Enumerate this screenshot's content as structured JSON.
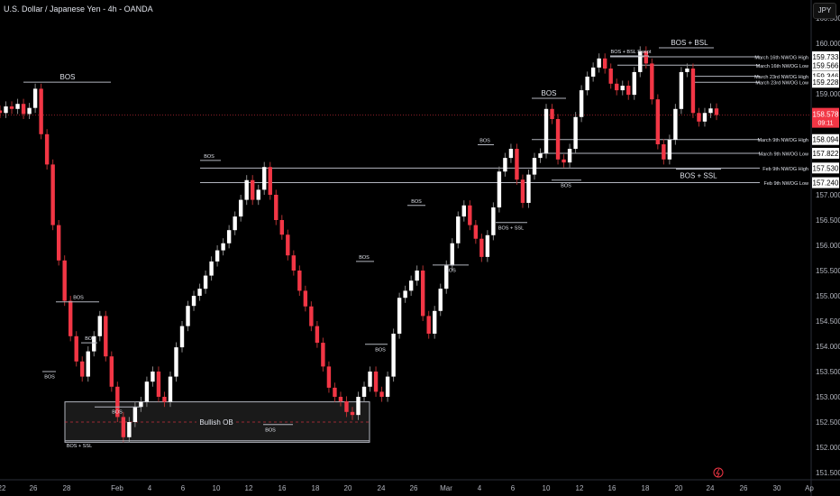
{
  "header": {
    "title": "U.S. Dollar / Japanese Yen - 4h - OANDA",
    "currency_button": "JPY"
  },
  "current_price": {
    "price": 158.578,
    "label": "158.578",
    "countdown": "09:11",
    "color": "#f23645"
  },
  "icons": {
    "alert": "lightning-icon"
  },
  "colors": {
    "background": "#000000",
    "up_candle": "#ffffff",
    "down_candle": "#f23645",
    "level_line": "#b2b5be",
    "axis_text": "#b2b5be"
  },
  "chart_data": {
    "type": "candlestick",
    "title": "U.S. Dollar / Japanese Yen - 4h - OANDA",
    "ylim": [
      151.4,
      160.6
    ],
    "y_ticks": [
      "160.500",
      "160.000",
      "159.000",
      "157.000",
      "156.500",
      "156.000",
      "155.500",
      "155.000",
      "154.500",
      "154.000",
      "153.500",
      "153.000",
      "152.500",
      "152.000",
      "151.500"
    ],
    "x_ticks": [
      "22",
      "26",
      "28",
      "Feb",
      "4",
      "6",
      "10",
      "12",
      "16",
      "18",
      "20",
      "24",
      "26",
      "Mar",
      "4",
      "6",
      "10",
      "12",
      "16",
      "18",
      "20",
      "24",
      "26",
      "30",
      "Ap"
    ],
    "closes": [
      158.62,
      158.75,
      158.7,
      158.8,
      158.6,
      158.72,
      159.1,
      158.2,
      157.6,
      156.4,
      155.7,
      154.9,
      154.2,
      153.7,
      153.4,
      153.9,
      154.2,
      154.6,
      153.8,
      153.2,
      152.6,
      152.2,
      152.5,
      152.8,
      152.9,
      153.3,
      153.5,
      153.0,
      152.9,
      153.4,
      153.98,
      154.4,
      154.8,
      155.0,
      155.14,
      155.4,
      155.68,
      155.9,
      156.04,
      156.3,
      156.57,
      156.9,
      157.29,
      156.9,
      157.1,
      157.55,
      157.0,
      156.5,
      156.21,
      155.8,
      155.5,
      155.1,
      154.79,
      154.4,
      154.07,
      153.6,
      153.18,
      153.0,
      152.91,
      152.7,
      152.64,
      153.0,
      153.2,
      153.5,
      153.1,
      153.0,
      153.4,
      154.25,
      154.96,
      155.1,
      155.3,
      155.5,
      154.6,
      154.25,
      154.7,
      155.14,
      155.6,
      156.04,
      156.57,
      156.79,
      156.4,
      156.13,
      155.77,
      156.2,
      156.75,
      157.46,
      157.73,
      157.91,
      157.3,
      156.84,
      157.4,
      157.73,
      157.82,
      158.7,
      158.5,
      157.7,
      157.64,
      157.91,
      158.54,
      159.07,
      159.34,
      159.52,
      159.7,
      159.5,
      159.2,
      159.07,
      159.16,
      158.98,
      159.43,
      159.84,
      159.6,
      158.89,
      158.0,
      157.7,
      158.09,
      158.7,
      159.43,
      159.5,
      158.62,
      158.45,
      158.62,
      158.71,
      158.58
    ],
    "price_levels": [
      {
        "label": "March 16th NWOG High",
        "price": 159.733,
        "price_label": "159.733"
      },
      {
        "label": "March 16th NWOG Low",
        "price": 159.566,
        "price_label": "159.566"
      },
      {
        "label": "March 23rd NWOG High",
        "price": 159.346,
        "price_label": "159.346"
      },
      {
        "label": "March 23rd NWOG Low",
        "price": 159.228,
        "price_label": "159.228"
      },
      {
        "label": "March 9th NWOG High",
        "price": 158.094,
        "price_label": "158.094"
      },
      {
        "label": "March 9th NWOG Low",
        "price": 157.822,
        "price_label": "157.822"
      },
      {
        "label": "Feb 9th NWOG High",
        "price": 157.53,
        "price_label": "157.530"
      },
      {
        "label": "Feb 9th NWOG Low",
        "price": 157.24,
        "price_label": "157.240"
      }
    ],
    "annotations": [
      {
        "label": "BOS",
        "price": 159.23
      },
      {
        "label": "BOS",
        "price": 154.88
      },
      {
        "label": "BOS",
        "price": 154.07
      },
      {
        "label": "BOS",
        "price": 153.5
      },
      {
        "label": "BOS",
        "price": 152.8
      },
      {
        "label": "BOS + SSL",
        "price": 152.13
      },
      {
        "label": "BOS",
        "price": 157.68
      },
      {
        "label": "BOS",
        "price": 152.45
      },
      {
        "label": "BOS",
        "price": 155.68
      },
      {
        "label": "BOS",
        "price": 154.04
      },
      {
        "label": "BOS",
        "price": 156.79
      },
      {
        "label": "BOS",
        "price": 155.61
      },
      {
        "label": "BOS",
        "price": 157.99
      },
      {
        "label": "BOS + SSL",
        "price": 156.45
      },
      {
        "label": "BOS",
        "price": 157.29
      },
      {
        "label": "BOS",
        "price": 158.91
      },
      {
        "label": "BOS + BSL Swept",
        "price": 159.75
      },
      {
        "label": "BOS + BSL",
        "price": 159.91
      },
      {
        "label": "BOS + SSL",
        "price": 157.51
      }
    ],
    "zones": [
      {
        "label": "Bullish OB",
        "top": 152.9,
        "bottom": 152.1
      }
    ]
  }
}
